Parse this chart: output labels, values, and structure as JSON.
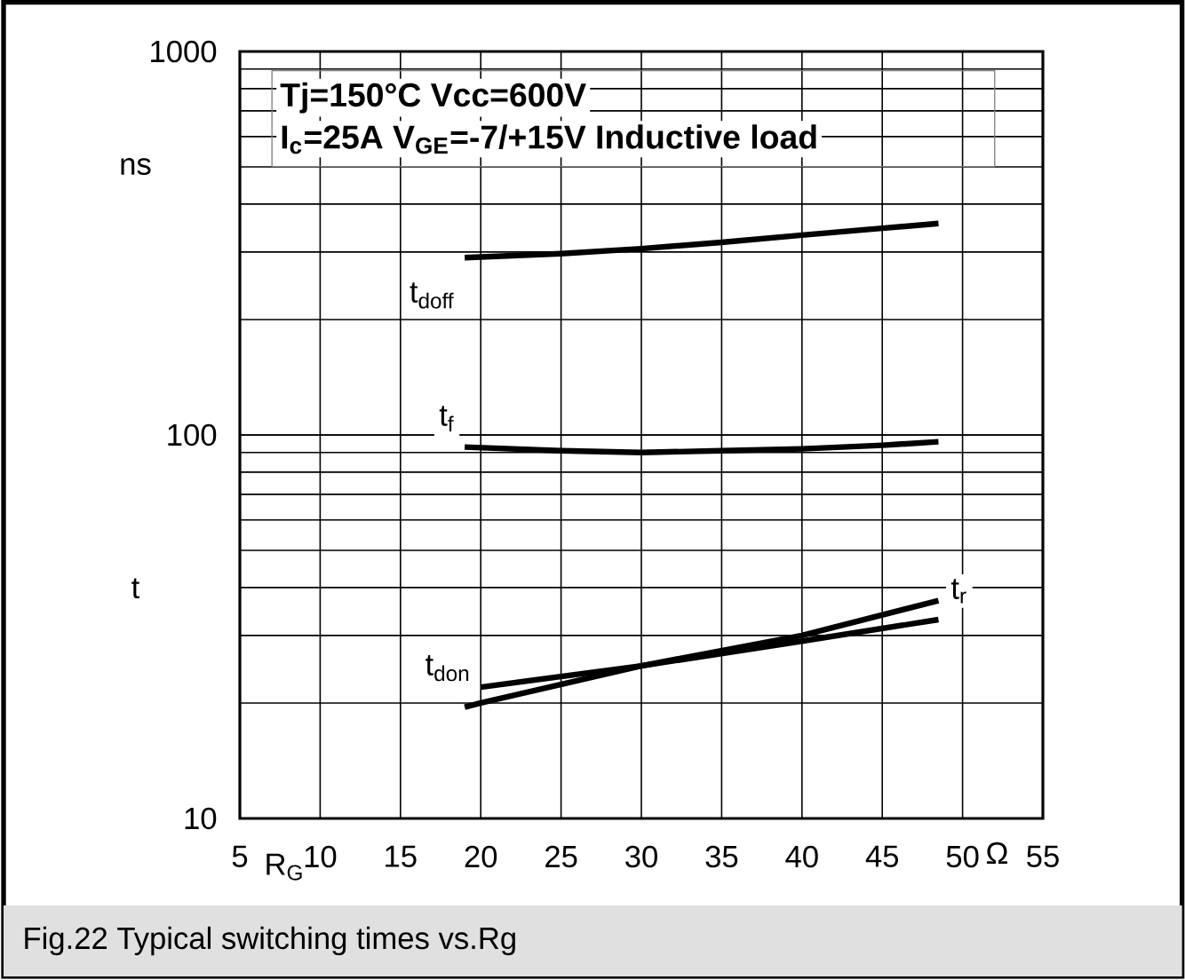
{
  "chart_data": {
    "type": "line",
    "title": null,
    "xlabel": "R$_{G}$",
    "ylabel": "t",
    "annotations": [
      "Tj=150°C   Vcc=600V",
      "I$_{c}$=25A   V$_{GE}$=-7/+15V  Inductive load",
      "ns",
      "Ω",
      "Fig.22 Typical switching times vs.Rg"
    ],
    "xlim": [
      5,
      55
    ],
    "xticks": [
      5,
      10,
      15,
      20,
      25,
      30,
      35,
      40,
      45,
      50,
      55
    ],
    "ylim": [
      10,
      1000
    ],
    "yticks": [
      10,
      100,
      1000
    ],
    "log": "y",
    "grid": true,
    "marker": "none",
    "line_style": "solid",
    "series": [
      {
        "name": "t$_{doff}$",
        "color": "#000000",
        "x": [
          19,
          25,
          30,
          35,
          40,
          45,
          48.5
        ],
        "values": [
          290,
          297,
          306,
          318,
          332,
          346,
          356
        ]
      },
      {
        "name": "t$_{f}$",
        "color": "#000000",
        "x": [
          19,
          25,
          30,
          35,
          40,
          45,
          48.5
        ],
        "values": [
          93,
          91,
          90,
          91,
          92,
          94,
          96
        ]
      },
      {
        "name": "t$_{don}$",
        "color": "#000000",
        "x": [
          20,
          30,
          40,
          48.5
        ],
        "values": [
          22,
          25,
          29,
          33
        ]
      },
      {
        "name": "t$_{r}$",
        "color": "#000000",
        "x": [
          19,
          20,
          30,
          40,
          48.5
        ],
        "values": [
          19.5,
          20,
          25,
          30,
          37
        ]
      }
    ]
  }
}
